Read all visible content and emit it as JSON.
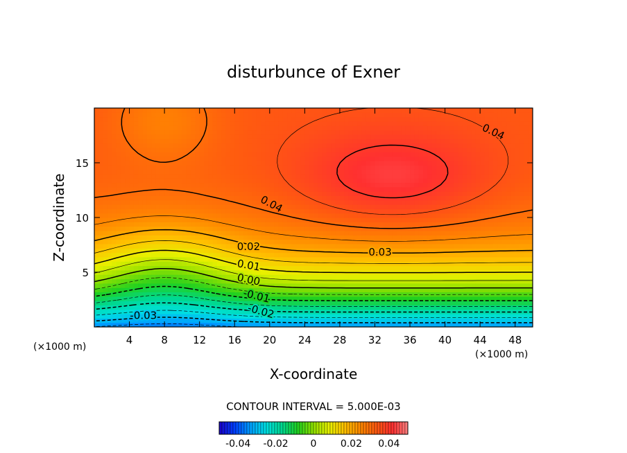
{
  "chart_data": {
    "type": "heatmap",
    "title": "disturbunce of Exner",
    "xlabel": "X-coordinate",
    "ylabel": "Z-coordinate",
    "x_unit_left": "(×1000 m)",
    "x_unit_right": "(×1000 m)",
    "xlim": [
      0,
      50
    ],
    "ylim": [
      0,
      20
    ],
    "x_ticks": [
      4,
      8,
      12,
      16,
      20,
      24,
      28,
      32,
      36,
      40,
      44,
      48
    ],
    "y_ticks": [
      5,
      10,
      15
    ],
    "contour_interval_text": "CONTOUR INTERVAL = 5.000E-03",
    "contour_labels": [
      "0.04",
      "0.04",
      "0.03",
      "0.02",
      "0.01",
      "0.00",
      "-0.01",
      "-0.02",
      "-0.03"
    ],
    "colorbar": {
      "range": [
        -0.05,
        0.05
      ],
      "ticks": [
        -0.04,
        -0.02,
        0,
        0.02,
        0.04
      ],
      "tick_labels": [
        "-0.04",
        "-0.02",
        "0",
        "0.02",
        "0.04"
      ]
    },
    "colormap": [
      "#1a00c8",
      "#0040ff",
      "#00a0ff",
      "#00e0e0",
      "#00d890",
      "#20d020",
      "#90e000",
      "#e8f000",
      "#ffc000",
      "#ff8800",
      "#ff5a10",
      "#ff3030",
      "#ff8080"
    ],
    "grid": false
  }
}
